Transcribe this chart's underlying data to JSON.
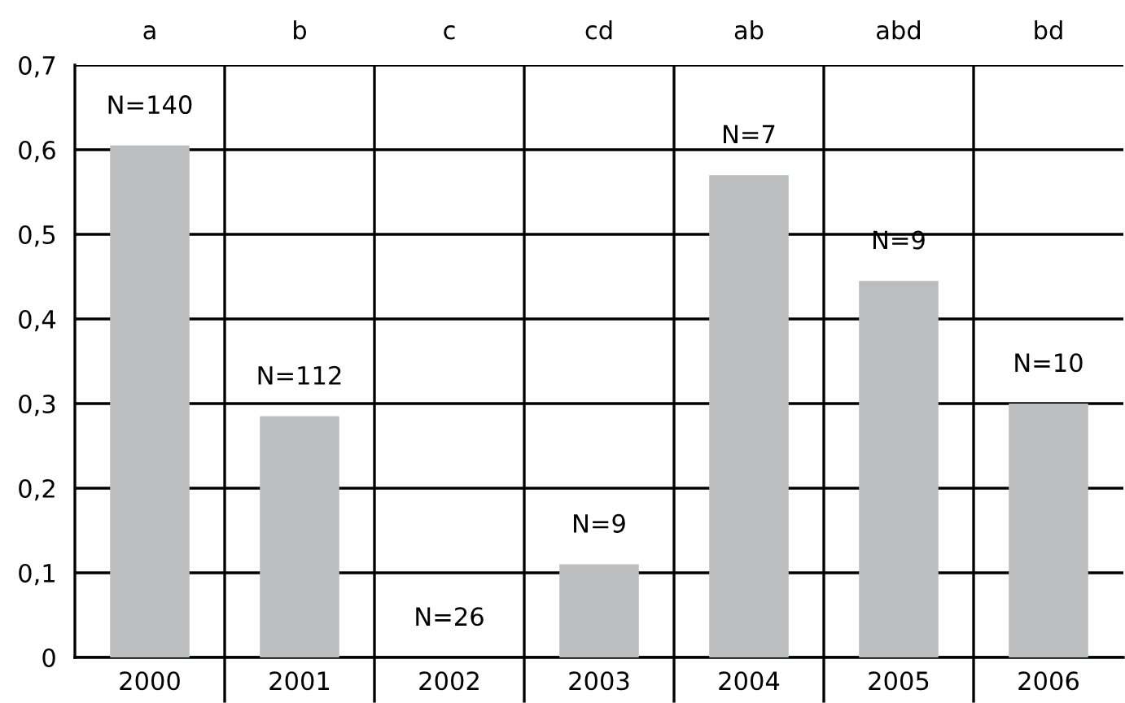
{
  "chart_data": {
    "type": "bar",
    "categories": [
      "2000",
      "2001",
      "2002",
      "2003",
      "2004",
      "2005",
      "2006"
    ],
    "values": [
      0.605,
      0.285,
      0,
      0.11,
      0.57,
      0.445,
      0.3
    ],
    "color": "#bcbdbf",
    "ylim": [
      0,
      0.7
    ],
    "yticks": [
      {
        "value": 0,
        "label": "0"
      },
      {
        "value": 0.1,
        "label": "0,1"
      },
      {
        "value": 0.2,
        "label": "0,2"
      },
      {
        "value": 0.3,
        "label": "0,3"
      },
      {
        "value": 0.4,
        "label": "0,4"
      },
      {
        "value": 0.5,
        "label": "0,5"
      },
      {
        "value": 0.6,
        "label": "0,6"
      },
      {
        "value": 0.7,
        "label": "0,7"
      }
    ],
    "grid": true,
    "annotations": [
      "a",
      "b",
      "c",
      "cd",
      "ab",
      "abd",
      "bd",
      {
        "text": "N=140",
        "x": "2000",
        "y": 0.605
      },
      {
        "text": "N=112",
        "x": "2001",
        "y": 0.285
      },
      {
        "text": "N=26",
        "x": "2002",
        "y": 0
      },
      {
        "text": "N=9",
        "x": "2003",
        "y": 0.11
      },
      {
        "text": "N=7",
        "x": "2004",
        "y": 0.57
      },
      {
        "text": "N=9",
        "x": "2005",
        "y": 0.445
      },
      {
        "text": "N=10",
        "x": "2006",
        "y": 0.3
      }
    ]
  }
}
